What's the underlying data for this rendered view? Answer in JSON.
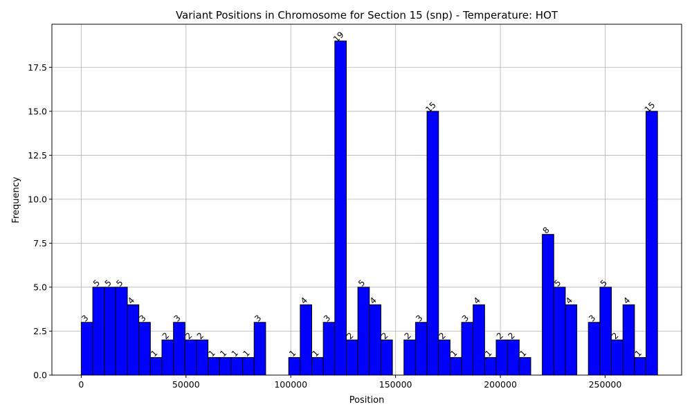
{
  "chart_data": {
    "type": "bar",
    "title": "Variant Positions in Chromosome for Section 15 (snp) - Temperature: HOT",
    "xlabel": "Position",
    "ylabel": "Frequency",
    "xlim": [
      -14000,
      286500
    ],
    "ylim": [
      0,
      19.95
    ],
    "grid": true,
    "bar_color": "#0000ff",
    "edge_color": "#000000",
    "bin_width": 5500,
    "bin_start": 0,
    "values": [
      3,
      5,
      5,
      5,
      4,
      3,
      1,
      2,
      3,
      2,
      2,
      1,
      1,
      1,
      1,
      3,
      0,
      0,
      1,
      4,
      1,
      3,
      19,
      2,
      5,
      4,
      2,
      0,
      2,
      3,
      15,
      2,
      1,
      3,
      4,
      1,
      2,
      2,
      1,
      0,
      8,
      5,
      4,
      0,
      3,
      5,
      2,
      4,
      1,
      15
    ],
    "data_labels": [
      "3",
      "5",
      "5",
      "5",
      "4",
      "3",
      "1",
      "2",
      "3",
      "2",
      "2",
      "1",
      "1",
      "1",
      "1",
      "3",
      "",
      "",
      "1",
      "4",
      "1",
      "3",
      "19",
      "2",
      "5",
      "4",
      "2",
      "",
      "2",
      "3",
      "15",
      "2",
      "1",
      "3",
      "4",
      "1",
      "2",
      "2",
      "1",
      "",
      "8",
      "5",
      "4",
      "",
      "3",
      "5",
      "2",
      "4",
      "1",
      "15"
    ],
    "x_ticks": [
      0,
      50000,
      100000,
      150000,
      200000,
      250000
    ],
    "x_tick_labels": [
      "0",
      "50000",
      "100000",
      "150000",
      "200000",
      "250000"
    ],
    "y_ticks": [
      0,
      2.5,
      5,
      7.5,
      10,
      12.5,
      15,
      17.5
    ],
    "y_tick_labels": [
      "0.0",
      "2.5",
      "5.0",
      "7.5",
      "10.0",
      "12.5",
      "15.0",
      "17.5"
    ]
  }
}
